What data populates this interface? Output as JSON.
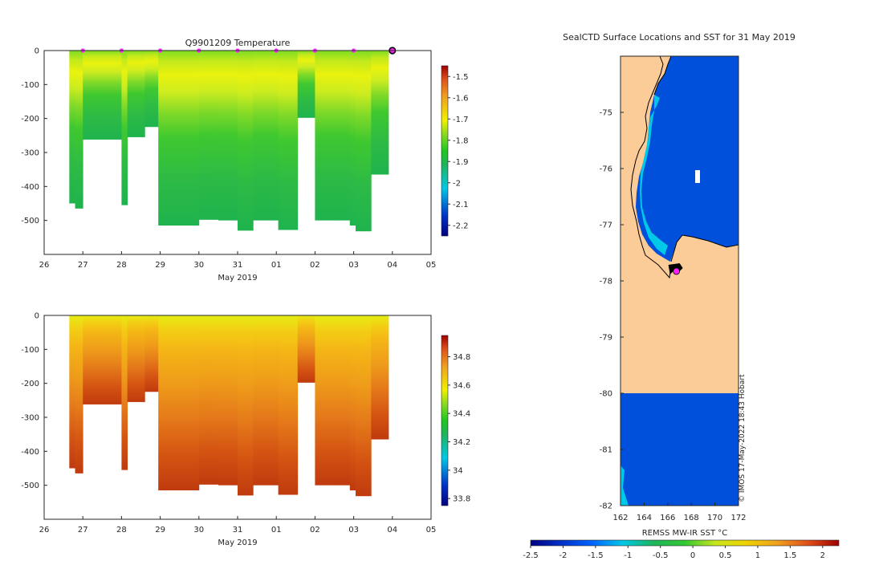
{
  "chart_data": [
    {
      "type": "heatmap",
      "title": "Q9901209  Temperature",
      "xlabel": "May 2019",
      "x_ticks": [
        "26",
        "27",
        "28",
        "29",
        "30",
        "31",
        "01",
        "02",
        "03",
        "04",
        "05"
      ],
      "x_tick_days": [
        26,
        27,
        28,
        29,
        30,
        31,
        32,
        33,
        34,
        35,
        36
      ],
      "xlim_days": [
        26,
        36
      ],
      "ylim": [
        -600,
        0
      ],
      "y_ticks": [
        0,
        -100,
        -200,
        -300,
        -400,
        -500
      ],
      "colorbar": {
        "min": -2.25,
        "max": -1.45,
        "ticks": [
          "-1.5",
          "-1.6",
          "-1.7",
          "-1.8",
          "-1.9",
          "-2",
          "-2.1",
          "-2.2"
        ],
        "tick_values": [
          -1.5,
          -1.6,
          -1.7,
          -1.8,
          -1.9,
          -2.0,
          -2.1,
          -2.2
        ]
      },
      "profile_days": [
        26.65,
        26.8,
        27.0,
        27.55,
        28.0,
        28.15,
        28.6,
        28.95,
        29.5,
        30.0,
        30.4,
        30.5,
        30.85,
        31.0,
        31.4,
        31.9,
        32.05,
        32.55,
        33.0,
        33.5,
        33.9,
        34.05,
        34.45
      ],
      "profile_max_depth": [
        -450,
        -465,
        -262,
        -262,
        -455,
        -255,
        -225,
        -515,
        -515,
        -498,
        -498,
        -500,
        -500,
        -530,
        -500,
        -500,
        -528,
        -198,
        -500,
        -500,
        -515,
        -532,
        -365
      ],
      "surface_markers_days": [
        27,
        28,
        29,
        30,
        31,
        32,
        33,
        34
      ],
      "highlight_marker_day": 35,
      "values_description": "Near-surface layer ~-1.7 (yellow-green), warmest band 50-100 m; deeper water ~-1.85 to -1.9 (green)"
    },
    {
      "type": "heatmap",
      "title": "",
      "xlabel": "May 2019",
      "x_ticks": [
        "26",
        "27",
        "28",
        "29",
        "30",
        "31",
        "01",
        "02",
        "03",
        "04",
        "05"
      ],
      "x_tick_days": [
        26,
        27,
        28,
        29,
        30,
        31,
        32,
        33,
        34,
        35,
        36
      ],
      "xlim_days": [
        26,
        36
      ],
      "ylim": [
        -600,
        0
      ],
      "y_ticks": [
        0,
        -100,
        -200,
        -300,
        -400,
        -500
      ],
      "colorbar": {
        "min": 33.75,
        "max": 34.95,
        "ticks": [
          "34.8",
          "34.6",
          "34.4",
          "34.2",
          "34",
          "33.8"
        ],
        "tick_values": [
          34.8,
          34.6,
          34.4,
          34.2,
          34.0,
          33.8
        ]
      },
      "values_description": "Surface ~34.45 increasing to ~34.9 at 500 m"
    },
    {
      "type": "heatmap",
      "title": "SealCTD Surface Locations and SST for 31 May 2019",
      "x_ticks": [
        "162",
        "164",
        "166",
        "168",
        "170",
        "172"
      ],
      "x_tick_values": [
        162,
        164,
        166,
        168,
        170,
        172
      ],
      "xlim": [
        162,
        172
      ],
      "y_ticks": [
        "-75",
        "-76",
        "-77",
        "-78",
        "-79",
        "-80",
        "-81",
        "-82"
      ],
      "y_tick_values": [
        -75,
        -76,
        -77,
        -78,
        -79,
        -80,
        -81,
        -82
      ],
      "ylim": [
        -82,
        -74
      ],
      "colorbar": {
        "label": "REMSS MW-IR SST °C",
        "min": -2.5,
        "max": 2.25,
        "ticks": [
          "-2.5",
          "-2",
          "-1.5",
          "-1",
          "-0.5",
          "0",
          "0.5",
          "1",
          "1.5",
          "2"
        ],
        "tick_values": [
          -2.5,
          -2,
          -1.5,
          -1,
          -0.5,
          0,
          0.5,
          1,
          1.5,
          2
        ]
      },
      "sea_value_c": -1.9,
      "land_color": "#fbcb98",
      "seal_location": {
        "lon": 166.6,
        "lat": -77.8
      },
      "credit": "© IMOS 17-May-2022 18:43 Hobart"
    }
  ]
}
